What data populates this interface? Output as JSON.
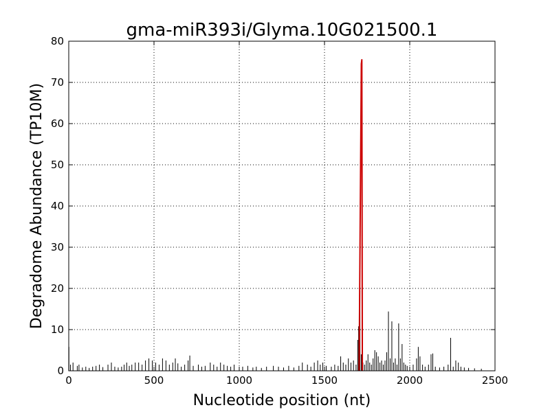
{
  "chart_data": {
    "type": "line",
    "title": "gma-miR393i/Glyma.10G021500.1",
    "xlabel": "Nucleotide position (nt)",
    "ylabel": "Degradome Abundance (TP10M)",
    "xlim": [
      0,
      2500
    ],
    "ylim": [
      0,
      80
    ],
    "xticks": [
      "0",
      "500",
      "1000",
      "1500",
      "2000",
      "2500"
    ],
    "yticks": [
      "0",
      "10",
      "20",
      "30",
      "40",
      "50",
      "60",
      "70",
      "80"
    ],
    "grid": true,
    "colors": {
      "series": "#000000",
      "target_site": "#cc0000"
    },
    "series": [
      {
        "type": "spikes",
        "values": [
          [
            1,
            5.8
          ],
          [
            10,
            1.5
          ],
          [
            25,
            2.0
          ],
          [
            50,
            1.2
          ],
          [
            60,
            1.5
          ],
          [
            80,
            0.8
          ],
          [
            100,
            1.0
          ],
          [
            120,
            0.7
          ],
          [
            140,
            1.0
          ],
          [
            160,
            1.2
          ],
          [
            180,
            1.5
          ],
          [
            200,
            0.9
          ],
          [
            230,
            1.5
          ],
          [
            250,
            2.0
          ],
          [
            270,
            1.0
          ],
          [
            290,
            0.8
          ],
          [
            310,
            1.0
          ],
          [
            325,
            1.5
          ],
          [
            340,
            2.0
          ],
          [
            355,
            1.2
          ],
          [
            370,
            1.5
          ],
          [
            390,
            2.0
          ],
          [
            410,
            2.0
          ],
          [
            430,
            1.5
          ],
          [
            450,
            2.5
          ],
          [
            470,
            3.0
          ],
          [
            490,
            2.5
          ],
          [
            510,
            2.0
          ],
          [
            530,
            1.5
          ],
          [
            550,
            3.0
          ],
          [
            570,
            2.5
          ],
          [
            590,
            1.5
          ],
          [
            610,
            2.0
          ],
          [
            625,
            3.0
          ],
          [
            640,
            1.8
          ],
          [
            660,
            1.0
          ],
          [
            680,
            1.5
          ],
          [
            700,
            2.5
          ],
          [
            710,
            3.7
          ],
          [
            730,
            1.2
          ],
          [
            760,
            1.5
          ],
          [
            780,
            1.0
          ],
          [
            800,
            1.2
          ],
          [
            830,
            2.0
          ],
          [
            850,
            1.5
          ],
          [
            870,
            1.0
          ],
          [
            890,
            2.0
          ],
          [
            910,
            1.5
          ],
          [
            930,
            1.2
          ],
          [
            950,
            1.0
          ],
          [
            970,
            1.5
          ],
          [
            1000,
            0.8
          ],
          [
            1020,
            1.0
          ],
          [
            1050,
            1.2
          ],
          [
            1080,
            0.8
          ],
          [
            1100,
            1.0
          ],
          [
            1130,
            0.7
          ],
          [
            1160,
            1.0
          ],
          [
            1200,
            1.2
          ],
          [
            1230,
            1.0
          ],
          [
            1260,
            0.8
          ],
          [
            1290,
            1.2
          ],
          [
            1320,
            0.8
          ],
          [
            1350,
            1.2
          ],
          [
            1370,
            2.0
          ],
          [
            1400,
            1.5
          ],
          [
            1420,
            1.0
          ],
          [
            1440,
            2.0
          ],
          [
            1460,
            2.5
          ],
          [
            1475,
            1.5
          ],
          [
            1490,
            2.0
          ],
          [
            1510,
            1.2
          ],
          [
            1540,
            1.0
          ],
          [
            1560,
            1.5
          ],
          [
            1580,
            1.2
          ],
          [
            1595,
            3.5
          ],
          [
            1610,
            2.0
          ],
          [
            1625,
            1.5
          ],
          [
            1640,
            3.0
          ],
          [
            1655,
            2.0
          ],
          [
            1670,
            2.5
          ],
          [
            1685,
            1.5
          ],
          [
            1695,
            7.5
          ],
          [
            1700,
            10.8
          ],
          [
            1704,
            13.7
          ],
          [
            1708,
            19.5
          ],
          [
            1716,
            4.0
          ],
          [
            1725,
            2.0
          ],
          [
            1735,
            1.5
          ],
          [
            1745,
            2.5
          ],
          [
            1755,
            4.0
          ],
          [
            1765,
            2.0
          ],
          [
            1775,
            1.5
          ],
          [
            1785,
            3.0
          ],
          [
            1795,
            5.0
          ],
          [
            1805,
            4.5
          ],
          [
            1815,
            3.5
          ],
          [
            1825,
            2.0
          ],
          [
            1835,
            2.5
          ],
          [
            1845,
            1.5
          ],
          [
            1855,
            2.5
          ],
          [
            1865,
            4.5
          ],
          [
            1875,
            14.4
          ],
          [
            1885,
            3.0
          ],
          [
            1895,
            12.0
          ],
          [
            1905,
            2.0
          ],
          [
            1915,
            3.0
          ],
          [
            1925,
            1.5
          ],
          [
            1935,
            11.5
          ],
          [
            1945,
            3.0
          ],
          [
            1955,
            6.5
          ],
          [
            1965,
            2.0
          ],
          [
            1975,
            1.5
          ],
          [
            1985,
            1.2
          ],
          [
            2000,
            1.0
          ],
          [
            2020,
            1.5
          ],
          [
            2040,
            3.0
          ],
          [
            2050,
            5.8
          ],
          [
            2060,
            3.5
          ],
          [
            2075,
            1.5
          ],
          [
            2090,
            1.0
          ],
          [
            2110,
            1.5
          ],
          [
            2125,
            4.0
          ],
          [
            2135,
            4.2
          ],
          [
            2150,
            1.0
          ],
          [
            2175,
            0.8
          ],
          [
            2200,
            1.0
          ],
          [
            2225,
            1.5
          ],
          [
            2240,
            8.0
          ],
          [
            2255,
            1.0
          ],
          [
            2270,
            2.5
          ],
          [
            2285,
            2.0
          ],
          [
            2300,
            1.0
          ],
          [
            2320,
            0.8
          ],
          [
            2345,
            0.7
          ],
          [
            2380,
            0.6
          ],
          [
            2420,
            0.5
          ]
        ]
      },
      {
        "type": "target-site",
        "values": [
          [
            1703,
            0
          ],
          [
            1716,
            74.5
          ],
          [
            1719,
            75.5
          ],
          [
            1722,
            0
          ]
        ]
      }
    ]
  }
}
